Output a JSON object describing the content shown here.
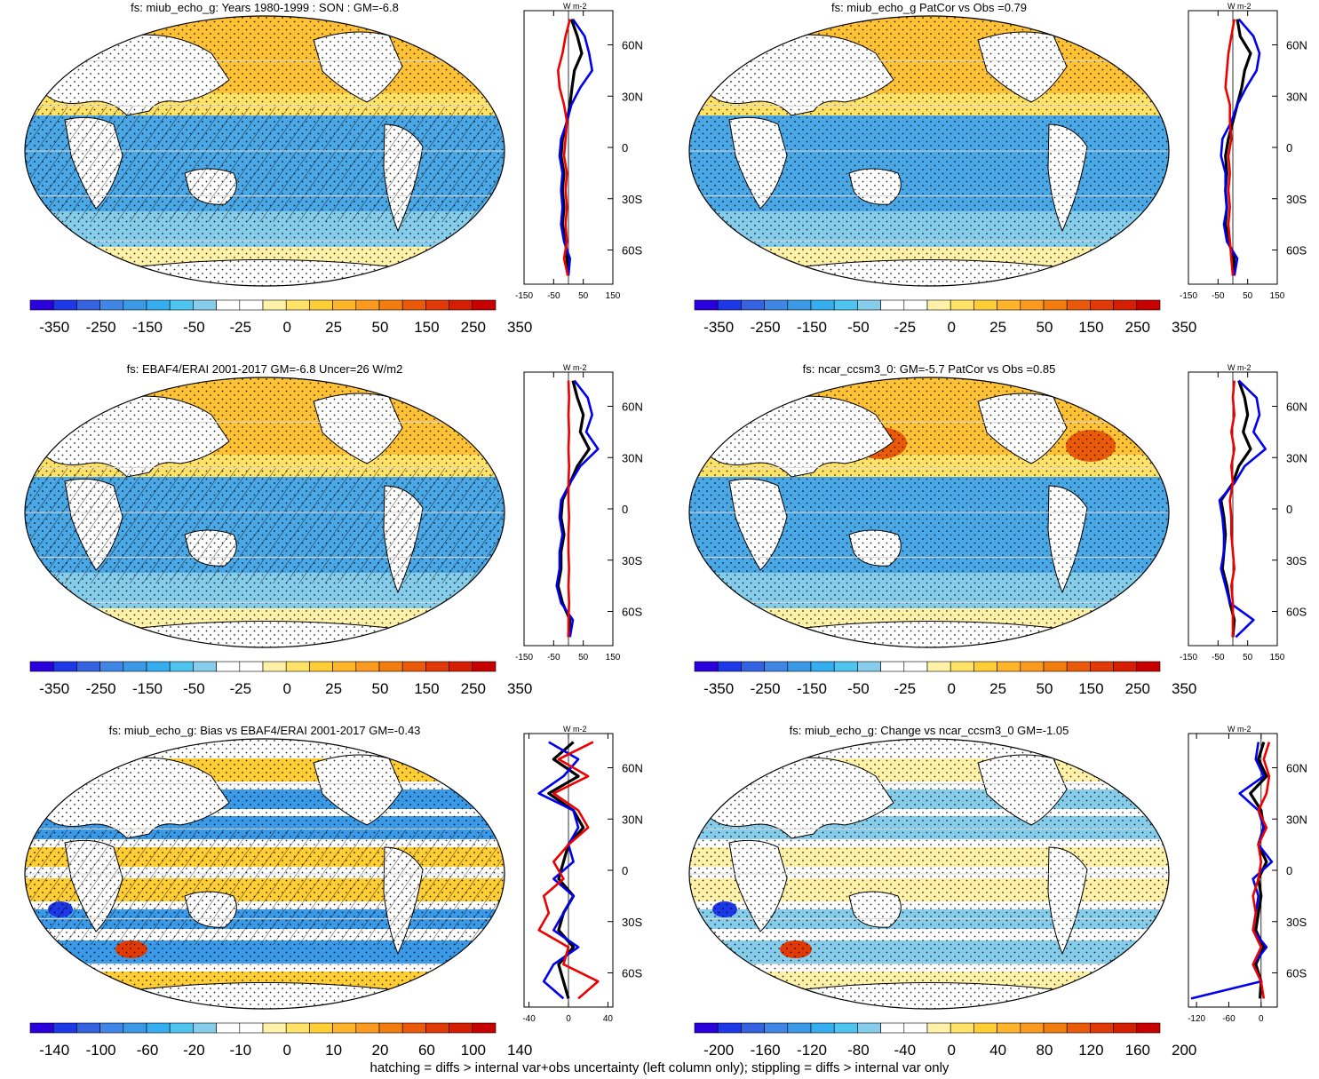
{
  "footer": "hatching = diffs > internal var+obs uncertainty (left column only); stippling = diffs > internal var only",
  "chart_data": [
    {
      "type": "heatmap",
      "title": "fs: miub_echo_g: Years 1980-1999 : SON : GM=-6.8",
      "colorbar_labels": [
        "-350",
        "-250",
        "-150",
        "-50",
        "-25",
        "0",
        "25",
        "50",
        "150",
        "250",
        "350"
      ],
      "profile": {
        "type": "line",
        "unit": "W m-2",
        "xticks": [
          "-150",
          "-50",
          "50",
          "150"
        ],
        "xlim": [
          -150,
          150
        ],
        "yticks": [
          "60N",
          "30N",
          "0",
          "30S",
          "60S"
        ],
        "lat": [
          75,
          65,
          55,
          45,
          35,
          25,
          15,
          5,
          -5,
          -15,
          -25,
          -35,
          -45,
          -55,
          -65,
          -75
        ],
        "series": [
          {
            "color": "#000000",
            "values": [
              10,
              30,
              45,
              20,
              12,
              5,
              -5,
              -20,
              -25,
              -15,
              -20,
              -15,
              -20,
              -10,
              -5,
              -2
            ]
          },
          {
            "color": "#0000ee",
            "values": [
              15,
              55,
              70,
              80,
              40,
              10,
              -5,
              -25,
              -30,
              -20,
              -25,
              -20,
              -25,
              -15,
              5,
              0
            ]
          },
          {
            "color": "#ee0000",
            "values": [
              5,
              -10,
              -20,
              -35,
              -30,
              -15,
              -5,
              -10,
              -15,
              -5,
              -10,
              -5,
              -10,
              -5,
              -15,
              -2
            ]
          }
        ]
      }
    },
    {
      "type": "heatmap",
      "title": "fs: miub_echo_g PatCor vs Obs =0.79",
      "colorbar_labels": [
        "-350",
        "-250",
        "-150",
        "-50",
        "-25",
        "0",
        "25",
        "50",
        "150",
        "250",
        "350"
      ],
      "profile": {
        "type": "line",
        "unit": "W m-2",
        "xticks": [
          "-150",
          "-50",
          "50",
          "150"
        ],
        "xlim": [
          -150,
          150
        ],
        "yticks": [
          "60N",
          "30N",
          "0",
          "30S",
          "60S"
        ],
        "lat": [
          75,
          65,
          55,
          45,
          35,
          25,
          15,
          5,
          -5,
          -15,
          -25,
          -35,
          -45,
          -55,
          -65,
          -75
        ],
        "series": [
          {
            "color": "#000000",
            "values": [
              15,
              25,
              60,
              40,
              30,
              15,
              0,
              -15,
              -25,
              -20,
              -25,
              -20,
              -25,
              -15,
              5,
              0
            ]
          },
          {
            "color": "#0000ee",
            "values": [
              20,
              70,
              90,
              80,
              45,
              15,
              -5,
              -35,
              -40,
              -25,
              -25,
              -20,
              -30,
              -20,
              15,
              5
            ]
          },
          {
            "color": "#ee0000",
            "values": [
              5,
              -5,
              -15,
              -20,
              -25,
              -10,
              -10,
              -5,
              -15,
              -10,
              -15,
              -10,
              -15,
              -10,
              -5,
              0
            ]
          }
        ]
      }
    },
    {
      "type": "heatmap",
      "title": "fs: EBAF4/ERAI 2001-2017 GM=-6.8 Uncer=26 W/m2",
      "colorbar_labels": [
        "-350",
        "-250",
        "-150",
        "-50",
        "-25",
        "0",
        "25",
        "50",
        "150",
        "250",
        "350"
      ],
      "profile": {
        "type": "line",
        "unit": "W m-2",
        "xticks": [
          "-150",
          "-50",
          "50",
          "150"
        ],
        "xlim": [
          -150,
          150
        ],
        "yticks": [
          "60N",
          "30N",
          "0",
          "30S",
          "60S"
        ],
        "lat": [
          75,
          65,
          55,
          45,
          35,
          25,
          15,
          5,
          -5,
          -15,
          -25,
          -35,
          -45,
          -55,
          -65,
          -75
        ],
        "series": [
          {
            "color": "#000000",
            "values": [
              15,
              30,
              50,
              40,
              70,
              30,
              5,
              -20,
              -25,
              -15,
              -25,
              -25,
              -35,
              -20,
              5,
              0
            ]
          },
          {
            "color": "#0000ee",
            "values": [
              20,
              65,
              80,
              60,
              100,
              40,
              5,
              -25,
              -30,
              -20,
              -30,
              -30,
              -40,
              -25,
              15,
              5
            ]
          },
          {
            "color": "#ee0000",
            "values": [
              0,
              2,
              0,
              2,
              0,
              2,
              0,
              0,
              2,
              0,
              0,
              2,
              0,
              2,
              0,
              0
            ]
          }
        ]
      }
    },
    {
      "type": "heatmap",
      "title": "fs: ncar_ccsm3_0: GM=-5.7 PatCor vs Obs =0.85",
      "colorbar_labels": [
        "-350",
        "-250",
        "-150",
        "-50",
        "-25",
        "0",
        "25",
        "50",
        "150",
        "250",
        "350"
      ],
      "profile": {
        "type": "line",
        "unit": "W m-2",
        "xticks": [
          "-150",
          "-50",
          "50",
          "150"
        ],
        "xlim": [
          -150,
          150
        ],
        "yticks": [
          "60N",
          "30N",
          "0",
          "30S",
          "60S"
        ],
        "lat": [
          75,
          65,
          55,
          45,
          35,
          25,
          15,
          5,
          -5,
          -15,
          -25,
          -35,
          -45,
          -55,
          -65,
          -75
        ],
        "series": [
          {
            "color": "#000000",
            "values": [
              20,
              40,
              50,
              35,
              60,
              20,
              0,
              -40,
              -30,
              -25,
              -30,
              -35,
              -20,
              -10,
              5,
              0
            ]
          },
          {
            "color": "#0000ee",
            "values": [
              20,
              80,
              90,
              70,
              110,
              40,
              5,
              -45,
              -35,
              -30,
              -30,
              -40,
              -25,
              -10,
              70,
              10
            ]
          },
          {
            "color": "#ee0000",
            "values": [
              5,
              0,
              5,
              -5,
              5,
              -5,
              0,
              -10,
              -5,
              -5,
              0,
              5,
              -5,
              0,
              0,
              0
            ]
          }
        ]
      }
    },
    {
      "type": "heatmap",
      "title": "fs: miub_echo_g: Bias vs EBAF4/ERAI 2001-2017  GM=-0.43",
      "colorbar_labels": [
        "-140",
        "-100",
        "-60",
        "-20",
        "-10",
        "0",
        "10",
        "20",
        "60",
        "100",
        "140"
      ],
      "profile": {
        "type": "line",
        "unit": "W m-2",
        "xticks": [
          "-40",
          "0",
          "40"
        ],
        "xlim": [
          -45,
          45
        ],
        "yticks": [
          "60N",
          "30N",
          "0",
          "30S",
          "60S"
        ],
        "lat": [
          75,
          65,
          55,
          45,
          35,
          25,
          15,
          5,
          -5,
          -15,
          -25,
          -35,
          -45,
          -55,
          -65,
          -75
        ],
        "series": [
          {
            "color": "#000000",
            "values": [
              5,
              -15,
              10,
              -20,
              5,
              15,
              0,
              -5,
              -10,
              5,
              -5,
              -10,
              5,
              -10,
              -5,
              0
            ]
          },
          {
            "color": "#0000ee",
            "values": [
              -20,
              10,
              -5,
              -30,
              5,
              10,
              0,
              5,
              -15,
              5,
              -5,
              -15,
              10,
              -15,
              -25,
              -5
            ]
          },
          {
            "color": "#ee0000",
            "values": [
              25,
              -10,
              20,
              -15,
              10,
              20,
              0,
              -15,
              -5,
              -25,
              -20,
              -30,
              0,
              -5,
              30,
              10
            ]
          }
        ]
      }
    },
    {
      "type": "heatmap",
      "title": "fs: miub_echo_g: Change vs ncar_ccsm3_0 GM=-1.05",
      "colorbar_labels": [
        "-200",
        "-160",
        "-120",
        "-80",
        "-40",
        "0",
        "40",
        "80",
        "120",
        "160",
        "200"
      ],
      "profile": {
        "type": "line",
        "unit": "W m-2",
        "xticks": [
          "-120",
          "-60",
          "0"
        ],
        "xlim": [
          -135,
          30
        ],
        "yticks": [
          "60N",
          "30N",
          "0",
          "30S",
          "60S"
        ],
        "lat": [
          75,
          65,
          55,
          45,
          35,
          25,
          15,
          5,
          -5,
          -15,
          -25,
          -35,
          -45,
          -55,
          -65,
          -75
        ],
        "series": [
          {
            "color": "#000000",
            "values": [
              5,
              -5,
              10,
              -20,
              0,
              5,
              -5,
              10,
              -5,
              0,
              -5,
              -10,
              5,
              -10,
              0,
              -2
            ]
          },
          {
            "color": "#0000ee",
            "values": [
              -5,
              -10,
              5,
              -40,
              -5,
              5,
              -5,
              20,
              -15,
              -5,
              -10,
              -15,
              10,
              -15,
              0,
              -130
            ]
          },
          {
            "color": "#ee0000",
            "values": [
              15,
              5,
              15,
              10,
              -5,
              10,
              -5,
              0,
              -5,
              -15,
              -10,
              -15,
              0,
              -15,
              0,
              5
            ]
          }
        ]
      }
    }
  ]
}
